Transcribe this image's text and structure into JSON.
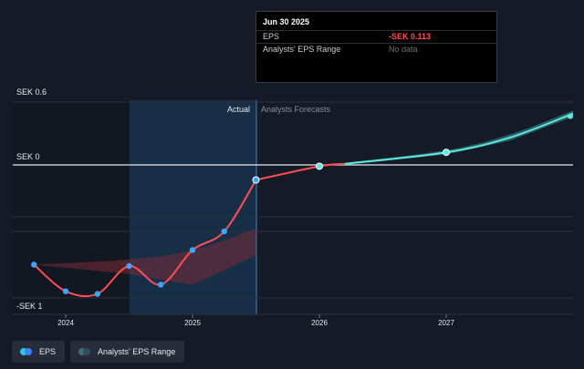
{
  "tooltip": {
    "title": "Jun 30 2025",
    "rows": [
      {
        "label": "EPS",
        "value": "-SEK 0.113"
      },
      {
        "label": "Analysts' EPS Range",
        "value": "No data"
      }
    ]
  },
  "legend": {
    "eps_label": "EPS",
    "range_label": "Analysts' EPS Range"
  },
  "colors": {
    "background": "#151b26",
    "eps_line": "#ff4d55",
    "forecast_line": "#5ee8e0",
    "point": "#3ea4ff",
    "range_fill": "#7a2a36",
    "actual_band": "#1b3c5a",
    "legend_eps_a": "#2dc6e8",
    "legend_eps_b": "#3d7fff",
    "legend_range_a": "#3b6f7a",
    "legend_range_b": "#2f4d63"
  },
  "chart_data": {
    "type": "line",
    "y_axis": {
      "top_label": "SEK 0.6",
      "zero_label": "SEK 0",
      "bottom_label": "-SEK 1",
      "ylim": [
        -1.1,
        0.6
      ]
    },
    "x_axis": {
      "ticks": [
        "2024",
        "2025",
        "2026",
        "2027"
      ],
      "xlim": [
        2023.6,
        2028.0
      ]
    },
    "region_labels": {
      "actual": "Actual",
      "forecast": "Analysts Forecasts"
    },
    "grid": true,
    "series": [
      {
        "name": "EPS",
        "kind": "actual",
        "points": [
          {
            "x": 2023.75,
            "y": -0.75
          },
          {
            "x": 2024.0,
            "y": -0.95
          },
          {
            "x": 2024.25,
            "y": -0.97
          },
          {
            "x": 2024.5,
            "y": -0.76
          },
          {
            "x": 2024.75,
            "y": -0.9
          },
          {
            "x": 2025.0,
            "y": -0.64
          },
          {
            "x": 2025.25,
            "y": -0.5
          },
          {
            "x": 2025.5,
            "y": -0.113
          }
        ]
      },
      {
        "name": "EPS",
        "kind": "forecast-red",
        "points": [
          {
            "x": 2025.5,
            "y": -0.113
          },
          {
            "x": 2026.0,
            "y": -0.01
          },
          {
            "x": 2026.2,
            "y": 0.01
          }
        ]
      },
      {
        "name": "EPS",
        "kind": "forecast-cyan",
        "points": [
          {
            "x": 2026.2,
            "y": 0.01
          },
          {
            "x": 2027.0,
            "y": 0.12
          },
          {
            "x": 2027.5,
            "y": 0.26
          },
          {
            "x": 2028.0,
            "y": 0.49
          }
        ]
      }
    ],
    "range_band": {
      "name": "Analysts' EPS Range",
      "upper": [
        {
          "x": 2023.75,
          "y": -0.75
        },
        {
          "x": 2024.5,
          "y": -0.71
        },
        {
          "x": 2025.0,
          "y": -0.64
        },
        {
          "x": 2025.5,
          "y": -0.48
        }
      ],
      "lower": [
        {
          "x": 2023.75,
          "y": -0.75
        },
        {
          "x": 2024.5,
          "y": -0.82
        },
        {
          "x": 2025.0,
          "y": -0.9
        },
        {
          "x": 2025.5,
          "y": -0.68
        }
      ]
    },
    "forecast_band": {
      "upper": [
        {
          "x": 2026.2,
          "y": 0.02
        },
        {
          "x": 2027.0,
          "y": 0.14
        },
        {
          "x": 2027.5,
          "y": 0.29
        },
        {
          "x": 2028.0,
          "y": 0.52
        }
      ],
      "lower": [
        {
          "x": 2026.2,
          "y": 0.0
        },
        {
          "x": 2027.0,
          "y": 0.1
        },
        {
          "x": 2027.5,
          "y": 0.23
        },
        {
          "x": 2028.0,
          "y": 0.46
        }
      ]
    },
    "highlight_markers": [
      {
        "x": 2025.5,
        "y": -0.113
      },
      {
        "x": 2026.0,
        "y": -0.01
      },
      {
        "x": 2027.0,
        "y": 0.12
      }
    ]
  }
}
